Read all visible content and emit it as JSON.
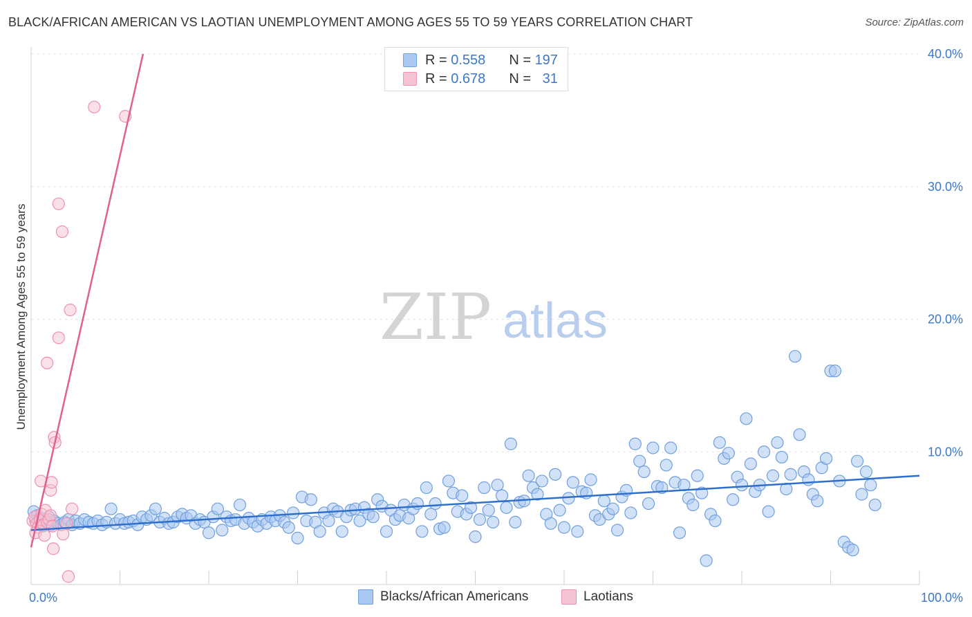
{
  "title": "BLACK/AFRICAN AMERICAN VS LAOTIAN UNEMPLOYMENT AMONG AGES 55 TO 59 YEARS CORRELATION CHART",
  "source": "Source: ZipAtlas.com",
  "watermark": {
    "zip": "ZIP",
    "atlas": "atlas"
  },
  "stats": {
    "r_label": "R =",
    "n_label": "N =",
    "rows": [
      {
        "r": "0.558",
        "n": "197",
        "color": "#a9c8f2"
      },
      {
        "r": "0.678",
        "n": "31",
        "color": "#f6b9cc"
      }
    ]
  },
  "legend": {
    "blacks": "Blacks/African Americans",
    "laotians": "Laotians"
  },
  "chart_data": {
    "type": "scatter",
    "xlabel": "",
    "ylabel": "Unemployment Among Ages 55 to 59 years",
    "xlim": [
      0,
      100
    ],
    "ylim": [
      0,
      40
    ],
    "x_tick_labels": [
      "0.0%",
      "100.0%"
    ],
    "y_ticks": [
      10,
      20,
      30,
      40
    ],
    "y_tick_labels": [
      "10.0%",
      "20.0%",
      "30.0%",
      "40.0%"
    ],
    "grid": true,
    "legend_position": "bottom-center",
    "colors": {
      "blacks_fill": "#a9c8f2",
      "blacks_stroke": "#6f9fdc",
      "blacks_line": "#2f6fcc",
      "laotians_fill": "#f6c3d3",
      "laotians_stroke": "#ee90ae",
      "laotians_line": "#e0608e"
    },
    "series": [
      {
        "name": "Blacks/African Americans",
        "trend": {
          "x": [
            0,
            100
          ],
          "y": [
            4.1,
            8.2
          ]
        },
        "points": [
          [
            0.3,
            5.5
          ],
          [
            0.5,
            4.8
          ],
          [
            0.7,
            5.2
          ],
          [
            0.9,
            4.6
          ],
          [
            1.1,
            5.0
          ],
          [
            1.3,
            4.4
          ],
          [
            1.5,
            4.9
          ],
          [
            1.8,
            4.7
          ],
          [
            2.0,
            5.1
          ],
          [
            2.3,
            4.5
          ],
          [
            2.6,
            4.8
          ],
          [
            3.0,
            4.6
          ],
          [
            3.4,
            4.5
          ],
          [
            3.8,
            4.7
          ],
          [
            4.2,
            4.9
          ],
          [
            4.6,
            4.5
          ],
          [
            5.0,
            4.8
          ],
          [
            5.5,
            4.6
          ],
          [
            6.0,
            4.9
          ],
          [
            6.5,
            4.7
          ],
          [
            7.0,
            4.6
          ],
          [
            7.5,
            4.8
          ],
          [
            8.0,
            4.5
          ],
          [
            8.5,
            4.7
          ],
          [
            9.0,
            5.7
          ],
          [
            9.5,
            4.6
          ],
          [
            10.0,
            4.9
          ],
          [
            10.5,
            4.6
          ],
          [
            11.0,
            4.7
          ],
          [
            11.5,
            4.8
          ],
          [
            12.0,
            4.5
          ],
          [
            12.5,
            5.1
          ],
          [
            13.0,
            4.9
          ],
          [
            13.5,
            5.2
          ],
          [
            14.0,
            5.7
          ],
          [
            14.5,
            4.7
          ],
          [
            15.0,
            5.0
          ],
          [
            15.5,
            4.6
          ],
          [
            16.0,
            4.7
          ],
          [
            16.5,
            5.1
          ],
          [
            17.0,
            5.3
          ],
          [
            17.5,
            5.0
          ],
          [
            18.0,
            5.2
          ],
          [
            18.5,
            4.6
          ],
          [
            19.0,
            4.9
          ],
          [
            19.5,
            4.7
          ],
          [
            20.0,
            3.9
          ],
          [
            20.5,
            5.1
          ],
          [
            21.0,
            5.7
          ],
          [
            21.5,
            4.1
          ],
          [
            22.0,
            5.1
          ],
          [
            22.5,
            4.8
          ],
          [
            23.0,
            4.9
          ],
          [
            23.5,
            6.0
          ],
          [
            24.0,
            4.6
          ],
          [
            24.5,
            5.0
          ],
          [
            25.0,
            4.7
          ],
          [
            25.5,
            4.4
          ],
          [
            26.0,
            4.9
          ],
          [
            26.5,
            4.6
          ],
          [
            27.0,
            5.1
          ],
          [
            27.5,
            4.8
          ],
          [
            28.0,
            5.2
          ],
          [
            28.5,
            4.7
          ],
          [
            29.0,
            4.3
          ],
          [
            29.5,
            5.4
          ],
          [
            30.0,
            3.5
          ],
          [
            30.5,
            6.6
          ],
          [
            31.0,
            4.8
          ],
          [
            31.5,
            6.4
          ],
          [
            32.0,
            4.7
          ],
          [
            32.5,
            4.0
          ],
          [
            33.0,
            5.4
          ],
          [
            33.5,
            4.8
          ],
          [
            34.0,
            5.7
          ],
          [
            34.5,
            5.5
          ],
          [
            35.0,
            4.0
          ],
          [
            35.5,
            5.1
          ],
          [
            36.0,
            5.6
          ],
          [
            36.5,
            5.7
          ],
          [
            37.0,
            4.8
          ],
          [
            37.5,
            5.8
          ],
          [
            38.0,
            5.3
          ],
          [
            38.5,
            5.1
          ],
          [
            39.0,
            6.4
          ],
          [
            39.5,
            5.9
          ],
          [
            40.0,
            4.0
          ],
          [
            40.5,
            5.6
          ],
          [
            41.0,
            4.9
          ],
          [
            41.5,
            5.2
          ],
          [
            42.0,
            6.0
          ],
          [
            42.5,
            5.0
          ],
          [
            43.0,
            5.7
          ],
          [
            43.5,
            6.1
          ],
          [
            44.0,
            4.0
          ],
          [
            44.5,
            7.3
          ],
          [
            45.0,
            5.3
          ],
          [
            45.5,
            6.1
          ],
          [
            46.0,
            4.2
          ],
          [
            46.5,
            4.3
          ],
          [
            47.0,
            7.8
          ],
          [
            47.5,
            6.9
          ],
          [
            48.0,
            5.5
          ],
          [
            48.5,
            6.7
          ],
          [
            49.0,
            5.3
          ],
          [
            49.5,
            5.8
          ],
          [
            50.0,
            3.6
          ],
          [
            50.5,
            4.9
          ],
          [
            51.0,
            7.3
          ],
          [
            51.5,
            5.6
          ],
          [
            52.0,
            4.7
          ],
          [
            52.5,
            7.5
          ],
          [
            53.0,
            6.7
          ],
          [
            53.5,
            5.8
          ],
          [
            54.0,
            10.6
          ],
          [
            54.5,
            4.7
          ],
          [
            55.0,
            6.2
          ],
          [
            55.5,
            6.3
          ],
          [
            56.0,
            8.2
          ],
          [
            56.5,
            7.3
          ],
          [
            57.0,
            6.8
          ],
          [
            57.5,
            7.8
          ],
          [
            58.0,
            5.3
          ],
          [
            58.5,
            4.6
          ],
          [
            59.0,
            8.3
          ],
          [
            59.5,
            5.6
          ],
          [
            60.0,
            4.3
          ],
          [
            60.5,
            6.5
          ],
          [
            61.0,
            7.7
          ],
          [
            61.5,
            4.0
          ],
          [
            62.0,
            7.0
          ],
          [
            62.5,
            6.9
          ],
          [
            63.0,
            7.9
          ],
          [
            63.5,
            5.2
          ],
          [
            64.0,
            4.9
          ],
          [
            64.5,
            6.3
          ],
          [
            65.0,
            5.3
          ],
          [
            65.5,
            5.7
          ],
          [
            66.0,
            4.1
          ],
          [
            66.5,
            6.6
          ],
          [
            67.0,
            7.1
          ],
          [
            67.5,
            5.4
          ],
          [
            68.0,
            10.6
          ],
          [
            68.5,
            9.3
          ],
          [
            69.0,
            8.5
          ],
          [
            69.5,
            6.1
          ],
          [
            70.0,
            10.3
          ],
          [
            70.5,
            7.4
          ],
          [
            71.0,
            7.3
          ],
          [
            71.5,
            9.0
          ],
          [
            72.0,
            10.3
          ],
          [
            72.5,
            7.7
          ],
          [
            73.0,
            3.9
          ],
          [
            73.5,
            7.5
          ],
          [
            74.0,
            6.5
          ],
          [
            74.5,
            6.0
          ],
          [
            75.0,
            8.2
          ],
          [
            75.5,
            6.9
          ],
          [
            76.0,
            1.8
          ],
          [
            76.5,
            5.3
          ],
          [
            77.0,
            4.8
          ],
          [
            77.5,
            10.7
          ],
          [
            78.0,
            9.5
          ],
          [
            78.5,
            9.9
          ],
          [
            79.0,
            6.4
          ],
          [
            79.5,
            8.1
          ],
          [
            80.0,
            7.5
          ],
          [
            80.5,
            12.5
          ],
          [
            81.0,
            9.1
          ],
          [
            81.5,
            7.0
          ],
          [
            82.0,
            7.5
          ],
          [
            82.5,
            10.0
          ],
          [
            83.0,
            5.5
          ],
          [
            83.5,
            8.2
          ],
          [
            84.0,
            10.7
          ],
          [
            84.5,
            9.6
          ],
          [
            85.0,
            7.2
          ],
          [
            85.5,
            8.3
          ],
          [
            86.0,
            17.2
          ],
          [
            86.5,
            11.3
          ],
          [
            87.0,
            8.5
          ],
          [
            87.5,
            7.9
          ],
          [
            88.0,
            6.8
          ],
          [
            88.5,
            6.3
          ],
          [
            89.0,
            8.8
          ],
          [
            89.5,
            9.5
          ],
          [
            90.0,
            16.1
          ],
          [
            90.5,
            16.1
          ],
          [
            91.0,
            7.8
          ],
          [
            91.5,
            3.2
          ],
          [
            92.0,
            2.8
          ],
          [
            92.5,
            2.6
          ],
          [
            93.0,
            9.3
          ],
          [
            93.5,
            6.8
          ],
          [
            94.0,
            8.5
          ],
          [
            94.5,
            7.5
          ],
          [
            95.0,
            6.0
          ]
        ]
      },
      {
        "name": "Laotians",
        "trend": {
          "x": [
            0,
            12.6
          ],
          "y": [
            2.8,
            40
          ]
        },
        "points": [
          [
            0.2,
            4.8
          ],
          [
            0.4,
            5.1
          ],
          [
            0.6,
            4.6
          ],
          [
            0.8,
            4.3
          ],
          [
            1.0,
            4.9
          ],
          [
            1.2,
            5.3
          ],
          [
            1.4,
            4.5
          ],
          [
            1.6,
            5.6
          ],
          [
            1.8,
            4.7
          ],
          [
            2.0,
            4.9
          ],
          [
            2.2,
            5.2
          ],
          [
            2.4,
            4.4
          ],
          [
            0.5,
            3.9
          ],
          [
            1.5,
            3.7
          ],
          [
            2.5,
            2.7
          ],
          [
            2.2,
            7.1
          ],
          [
            2.3,
            7.7
          ],
          [
            1.1,
            7.8
          ],
          [
            2.6,
            11.1
          ],
          [
            2.7,
            10.7
          ],
          [
            1.8,
            16.7
          ],
          [
            3.1,
            18.6
          ],
          [
            3.5,
            26.6
          ],
          [
            3.1,
            28.7
          ],
          [
            4.4,
            20.7
          ],
          [
            7.1,
            36.0
          ],
          [
            10.6,
            35.3
          ],
          [
            3.6,
            3.8
          ],
          [
            4.6,
            5.7
          ],
          [
            4.0,
            4.6
          ],
          [
            4.2,
            0.6
          ]
        ]
      }
    ]
  }
}
